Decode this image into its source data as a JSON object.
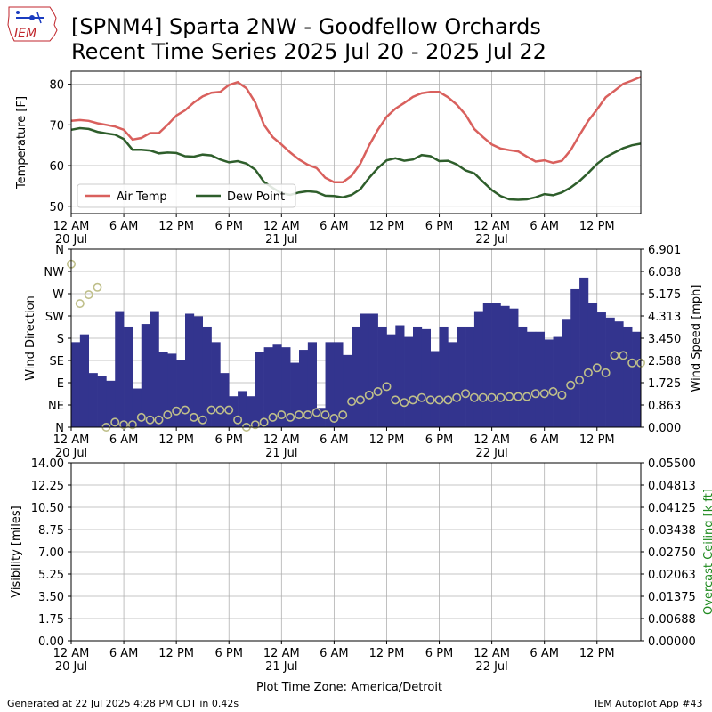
{
  "title": {
    "line1": "[SPNM4] Sparta 2NW - Goodfellow Orchards",
    "line2": "Recent Time Series 2025 Jul 20 - 2025 Jul 22"
  },
  "logo": {
    "text": "IEM",
    "color": "#c0262c"
  },
  "footer": {
    "left": "Generated at 22 Jul 2025 4:28 PM CDT in 0.42s",
    "center": "Plot Time Zone: America/Detroit",
    "right": "IEM Autoplot App #43"
  },
  "x_axis": {
    "tick_hours": [
      0,
      6,
      12,
      18,
      24,
      30,
      36,
      42,
      48,
      54,
      60
    ],
    "tick_labels": [
      "12 AM",
      "6 AM",
      "12 PM",
      "6 PM",
      "12 AM",
      "6 AM",
      "12 PM",
      "6 PM",
      "12 AM",
      "6 AM",
      "12 PM"
    ],
    "date_labels": [
      {
        "hour": 0,
        "text": "20 Jul"
      },
      {
        "hour": 24,
        "text": "21 Jul"
      },
      {
        "hour": 48,
        "text": "22 Jul"
      }
    ],
    "range_hours": [
      0,
      65
    ]
  },
  "chart_data": [
    {
      "type": "line",
      "ylabel": "Temperature [F]",
      "ylim": [
        48.2,
        83.2
      ],
      "yticks": [
        50,
        60,
        70,
        80
      ],
      "grid": true,
      "legend_position": "lower-left",
      "series": [
        {
          "name": "Air Temp",
          "color": "#d9605d",
          "x": [
            0,
            1,
            2,
            3,
            4,
            5,
            6,
            7,
            8,
            9,
            10,
            11,
            12,
            13,
            14,
            15,
            16,
            17,
            18,
            19,
            20,
            21,
            22,
            23,
            24,
            25,
            26,
            27,
            28,
            29,
            30,
            31,
            32,
            33,
            34,
            35,
            36,
            37,
            38,
            39,
            40,
            41,
            42,
            43,
            44,
            45,
            46,
            47,
            48,
            49,
            50,
            51,
            52,
            53,
            54,
            55,
            56,
            57,
            58,
            59,
            60,
            61,
            62,
            63,
            64,
            65
          ],
          "values": [
            71,
            71.2,
            71,
            70.4,
            70,
            69.6,
            68.8,
            66.4,
            66.8,
            68,
            68,
            70,
            72.3,
            73.6,
            75.5,
            77,
            77.9,
            78.1,
            79.8,
            80.5,
            79,
            75.5,
            70,
            67,
            65.2,
            63.2,
            61.5,
            60.2,
            59.4,
            57,
            55.9,
            55.9,
            57.5,
            60.5,
            65,
            68.8,
            72,
            74,
            75.4,
            76.9,
            77.8,
            78.1,
            78.1,
            76.8,
            75,
            72.5,
            69,
            67,
            65.2,
            64.2,
            63.8,
            63.5,
            62.2,
            61,
            61.3,
            60.7,
            61.2,
            63.8,
            67.5,
            71,
            73.8,
            76.8,
            78.4,
            80.1,
            80.9,
            81.8
          ]
        },
        {
          "name": "Dew Point",
          "color": "#2e5e2b",
          "x": [
            0,
            1,
            2,
            3,
            4,
            5,
            6,
            7,
            8,
            9,
            10,
            11,
            12,
            13,
            14,
            15,
            16,
            17,
            18,
            19,
            20,
            21,
            22,
            23,
            24,
            25,
            26,
            27,
            28,
            29,
            30,
            31,
            32,
            33,
            34,
            35,
            36,
            37,
            38,
            39,
            40,
            41,
            42,
            43,
            44,
            45,
            46,
            47,
            48,
            49,
            50,
            51,
            52,
            53,
            54,
            55,
            56,
            57,
            58,
            59,
            60,
            61,
            62,
            63,
            64,
            65
          ],
          "values": [
            68.8,
            69.2,
            69,
            68.3,
            67.9,
            67.6,
            66.5,
            63.9,
            63.9,
            63.7,
            63,
            63.2,
            63.1,
            62.3,
            62.2,
            62.7,
            62.5,
            61.5,
            60.8,
            61.1,
            60.5,
            59,
            56,
            54.5,
            53.2,
            52.8,
            53.4,
            53.7,
            53.5,
            52.6,
            52.5,
            52.2,
            52.8,
            54.2,
            57,
            59.4,
            61.3,
            61.8,
            61.2,
            61.5,
            62.6,
            62.3,
            61.1,
            61.2,
            60.3,
            58.8,
            58.1,
            56,
            54,
            52.5,
            51.7,
            51.6,
            51.7,
            52.2,
            53,
            52.7,
            53.4,
            54.6,
            56.2,
            58.2,
            60.4,
            62.1,
            63.2,
            64.3,
            65,
            65.4
          ]
        }
      ]
    },
    {
      "type": "bar+scatter",
      "ylabel_left": "Wind Direction",
      "ylabel_right": "Wind Speed [mph]",
      "direction_ticks": [
        "N",
        "NE",
        "E",
        "SE",
        "S",
        "SW",
        "W",
        "NW",
        "N"
      ],
      "direction_ylim": [
        0,
        360
      ],
      "speed_ylim": [
        0,
        6.901
      ],
      "speed_ticks": [
        "0.000",
        "0.863",
        "1.725",
        "2.588",
        "3.450",
        "4.313",
        "5.175",
        "6.038",
        "6.901"
      ],
      "grid": true,
      "series": [
        {
          "name": "Wind Speed",
          "type": "bar",
          "color": "#33348e",
          "bar_width_hours": 1,
          "x": [
            0.5,
            1.5,
            2.5,
            3.5,
            4.5,
            5.5,
            6.5,
            7.5,
            8.5,
            9.5,
            10.5,
            11.5,
            12.5,
            13.5,
            14.5,
            15.5,
            16.5,
            17.5,
            18.5,
            19.5,
            20.5,
            21.5,
            22.5,
            23.5,
            24.5,
            25.5,
            26.5,
            27.5,
            28.5,
            29.5,
            30.5,
            31.5,
            32.5,
            33.5,
            34.5,
            35.5,
            36.5,
            37.5,
            38.5,
            39.5,
            40.5,
            41.5,
            42.5,
            43.5,
            44.5,
            45.5,
            46.5,
            47.5,
            48.5,
            49.5,
            50.5,
            51.5,
            52.5,
            53.5,
            54.5,
            55.5,
            56.5,
            57.5,
            58.5,
            59.5,
            60.5,
            61.5,
            62.5,
            63.5,
            64.5
          ],
          "values": [
            3.3,
            3.6,
            2.1,
            2.0,
            1.8,
            4.5,
            3.9,
            1.5,
            4.0,
            4.5,
            2.9,
            2.85,
            2.6,
            4.4,
            4.3,
            3.9,
            3.3,
            2.1,
            1.2,
            1.4,
            1.2,
            2.9,
            3.1,
            3.2,
            3.1,
            2.5,
            3.0,
            3.3,
            0.75,
            3.3,
            3.3,
            2.8,
            3.9,
            4.4,
            4.4,
            3.9,
            3.6,
            3.95,
            3.5,
            3.9,
            3.8,
            2.95,
            3.9,
            3.3,
            3.9,
            3.9,
            4.5,
            4.8,
            4.8,
            4.7,
            4.6,
            3.9,
            3.7,
            3.7,
            3.4,
            3.5,
            4.2,
            5.35,
            5.8,
            4.8,
            4.45,
            4.25,
            4.1,
            3.9,
            3.7
          ]
        },
        {
          "name": "Wind Direction",
          "type": "scatter",
          "color": "#bfbf8a",
          "x": [
            0,
            1,
            2,
            3,
            4,
            5,
            6,
            7,
            8,
            9,
            10,
            11,
            12,
            13,
            14,
            15,
            16,
            17,
            18,
            19,
            20,
            21,
            22,
            23,
            24,
            25,
            26,
            27,
            28,
            29,
            30,
            31,
            32,
            33,
            34,
            35,
            36,
            37,
            38,
            39,
            40,
            41,
            42,
            43,
            44,
            45,
            46,
            47,
            48,
            49,
            50,
            51,
            52,
            53,
            54,
            55,
            56,
            57,
            58,
            59,
            60,
            61,
            62,
            63,
            64,
            65
          ],
          "values": [
            330,
            250,
            268,
            283,
            0,
            10,
            5,
            5,
            20,
            15,
            15,
            25,
            33,
            35,
            20,
            15,
            35,
            35,
            35,
            15,
            0,
            5,
            10,
            20,
            25,
            20,
            25,
            25,
            30,
            25,
            18,
            25,
            52,
            55,
            65,
            72,
            82,
            55,
            50,
            55,
            60,
            55,
            55,
            55,
            60,
            68,
            60,
            60,
            60,
            60,
            62,
            62,
            62,
            68,
            68,
            72,
            65,
            85,
            95,
            110,
            120,
            110,
            145,
            145,
            130,
            130
          ]
        }
      ]
    },
    {
      "type": "line",
      "ylabel_left": "Visibility [miles]",
      "ylabel_right": "Overcast Ceiling [k ft]",
      "ylabel_right_color": "#1f8a1f",
      "ylim_left": [
        0,
        14
      ],
      "yticks_left": [
        "0.00",
        "1.75",
        "3.50",
        "5.25",
        "7.00",
        "8.75",
        "10.50",
        "12.25",
        "14.00"
      ],
      "ylim_right": [
        0,
        0.055
      ],
      "yticks_right": [
        "0.00000",
        "0.00688",
        "0.01375",
        "0.02063",
        "0.02750",
        "0.03438",
        "0.04125",
        "0.04813",
        "0.05500"
      ],
      "grid": true,
      "series": []
    }
  ]
}
